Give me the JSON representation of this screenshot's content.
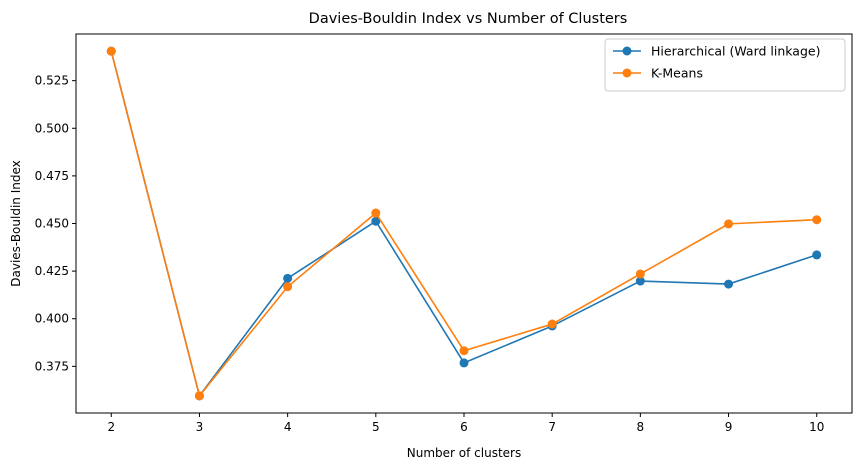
{
  "chart_data": {
    "type": "line",
    "title": "Davies-Bouldin Index vs Number of Clusters",
    "xlabel": "Number of clusters",
    "ylabel": "Davies-Bouldin Index",
    "x": [
      2,
      3,
      4,
      5,
      6,
      7,
      8,
      9,
      10
    ],
    "xlim": [
      1.6,
      10.4
    ],
    "ylim": [
      0.3505,
      0.5495
    ],
    "xticks": [
      2,
      3,
      4,
      5,
      6,
      7,
      8,
      9,
      10
    ],
    "xtick_labels": [
      "2",
      "3",
      "4",
      "5",
      "6",
      "7",
      "8",
      "9",
      "10"
    ],
    "yticks": [
      0.375,
      0.4,
      0.425,
      0.45,
      0.475,
      0.5,
      0.525
    ],
    "ytick_labels": [
      "0.375",
      "0.400",
      "0.425",
      "0.450",
      "0.475",
      "0.500",
      "0.525"
    ],
    "grid": false,
    "legend_position": "top-right",
    "marker": "circle",
    "series": [
      {
        "name": "Hierarchical (Ward linkage)",
        "color": "#1f77b4",
        "values": [
          0.5405,
          0.3595,
          0.4212,
          0.4512,
          0.3768,
          0.3962,
          0.4198,
          0.4182,
          0.4335
        ]
      },
      {
        "name": "K-Means",
        "color": "#ff7f0e",
        "values": [
          0.5405,
          0.3595,
          0.4168,
          0.4555,
          0.3832,
          0.3972,
          0.4235,
          0.4498,
          0.452
        ]
      }
    ]
  }
}
